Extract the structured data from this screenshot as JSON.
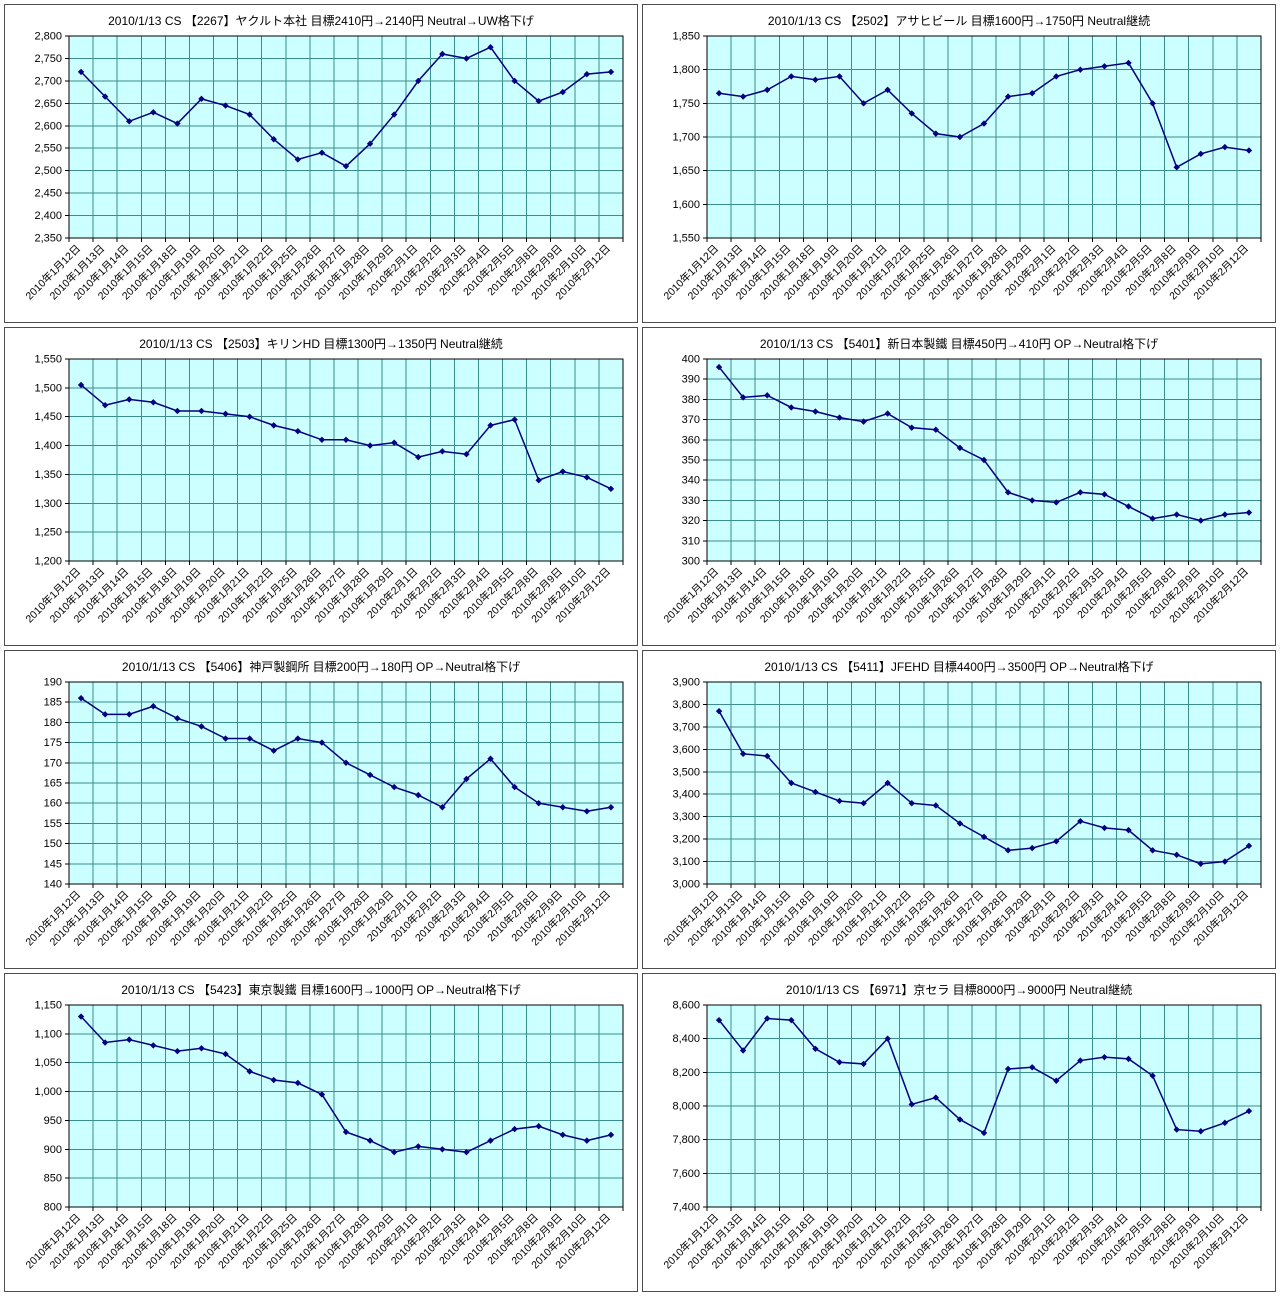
{
  "categories": [
    "2010年1月12日",
    "2010年1月13日",
    "2010年1月14日",
    "2010年1月15日",
    "2010年1月18日",
    "2010年1月19日",
    "2010年1月20日",
    "2010年1月21日",
    "2010年1月22日",
    "2010年1月25日",
    "2010年1月26日",
    "2010年1月27日",
    "2010年1月28日",
    "2010年1月29日",
    "2010年2月1日",
    "2010年2月2日",
    "2010年2月3日",
    "2010年2月4日",
    "2010年2月5日",
    "2010年2月8日",
    "2010年2月9日",
    "2010年2月10日",
    "2010年2月12日"
  ],
  "colors": {
    "page_bg": "#ffffff",
    "plot_bg": "#ccffff",
    "grid": "#3a8e8e",
    "series": "#000080",
    "axis": "#000000",
    "panel_border": "#4d4d4d"
  },
  "chart_data": [
    {
      "type": "line",
      "title": "2010/1/13 CS 【2267】ヤクルト本社 目標2410円→2140円 Neutral→UW格下げ",
      "values": [
        2720,
        2665,
        2610,
        2630,
        2605,
        2660,
        2645,
        2625,
        2570,
        2525,
        2540,
        2510,
        2560,
        2625,
        2700,
        2760,
        2750,
        2775,
        2700,
        2655,
        2675,
        2715,
        2720
      ],
      "ylim": [
        2350,
        2800
      ],
      "ytick_step": 50,
      "xlabel": "",
      "ylabel": "",
      "grid": true,
      "legend": false,
      "marker": "diamond"
    },
    {
      "type": "line",
      "title": "2010/1/13 CS 【2502】アサヒビール 目標1600円→1750円 Neutral継続",
      "values": [
        1765,
        1760,
        1770,
        1790,
        1785,
        1790,
        1750,
        1770,
        1735,
        1705,
        1700,
        1720,
        1760,
        1765,
        1790,
        1800,
        1805,
        1810,
        1750,
        1655,
        1675,
        1685,
        1680
      ],
      "ylim": [
        1550,
        1850
      ],
      "ytick_step": 50,
      "xlabel": "",
      "ylabel": "",
      "grid": true,
      "legend": false,
      "marker": "diamond"
    },
    {
      "type": "line",
      "title": "2010/1/13 CS 【2503】キリンHD 目標1300円→1350円 Neutral継続",
      "values": [
        1505,
        1470,
        1480,
        1475,
        1460,
        1460,
        1455,
        1450,
        1435,
        1425,
        1410,
        1410,
        1400,
        1405,
        1380,
        1390,
        1385,
        1435,
        1445,
        1340,
        1355,
        1345,
        1325
      ],
      "ylim": [
        1200,
        1550
      ],
      "ytick_step": 50,
      "xlabel": "",
      "ylabel": "",
      "grid": true,
      "legend": false,
      "marker": "diamond"
    },
    {
      "type": "line",
      "title": "2010/1/13 CS 【5401】新日本製鐵 目標450円→410円 OP→Neutral格下げ",
      "values": [
        396,
        381,
        382,
        376,
        374,
        371,
        369,
        373,
        366,
        365,
        356,
        350,
        334,
        330,
        329,
        334,
        333,
        327,
        321,
        323,
        320,
        323,
        324
      ],
      "ylim": [
        300,
        400
      ],
      "ytick_step": 10,
      "xlabel": "",
      "ylabel": "",
      "grid": true,
      "legend": false,
      "marker": "diamond"
    },
    {
      "type": "line",
      "title": "2010/1/13 CS 【5406】神戸製鋼所 目標200円→180円 OP→Neutral格下げ",
      "values": [
        186,
        182,
        182,
        184,
        181,
        179,
        176,
        176,
        173,
        176,
        175,
        170,
        167,
        164,
        162,
        159,
        166,
        171,
        164,
        160,
        159,
        158,
        159
      ],
      "ylim": [
        140,
        190
      ],
      "ytick_step": 5,
      "xlabel": "",
      "ylabel": "",
      "grid": true,
      "legend": false,
      "marker": "diamond"
    },
    {
      "type": "line",
      "title": "2010/1/13 CS 【5411】JFEHD 目標4400円→3500円 OP→Neutral格下げ",
      "values": [
        3770,
        3580,
        3570,
        3450,
        3410,
        3370,
        3360,
        3450,
        3360,
        3350,
        3270,
        3210,
        3150,
        3160,
        3190,
        3280,
        3250,
        3240,
        3150,
        3130,
        3090,
        3100,
        3170
      ],
      "ylim": [
        3000,
        3900
      ],
      "ytick_step": 100,
      "xlabel": "",
      "ylabel": "",
      "grid": true,
      "legend": false,
      "marker": "diamond"
    },
    {
      "type": "line",
      "title": "2010/1/13 CS 【5423】東京製鐵 目標1600円→1000円 OP→Neutral格下げ",
      "values": [
        1130,
        1085,
        1090,
        1080,
        1070,
        1075,
        1065,
        1035,
        1020,
        1015,
        995,
        930,
        915,
        895,
        905,
        900,
        895,
        915,
        935,
        940,
        925,
        915,
        925
      ],
      "ylim": [
        800,
        1150
      ],
      "ytick_step": 50,
      "xlabel": "",
      "ylabel": "",
      "grid": true,
      "legend": false,
      "marker": "diamond"
    },
    {
      "type": "line",
      "title": "2010/1/13 CS 【6971】京セラ 目標8000円→9000円 Neutral継続",
      "values": [
        8510,
        8330,
        8520,
        8510,
        8340,
        8260,
        8250,
        8400,
        8010,
        8050,
        7920,
        7840,
        8220,
        8230,
        8150,
        8270,
        8290,
        8280,
        8180,
        7860,
        7850,
        7900,
        7970
      ],
      "ylim": [
        7400,
        8600
      ],
      "ytick_step": 200,
      "xlabel": "",
      "ylabel": "",
      "grid": true,
      "legend": false,
      "marker": "diamond"
    }
  ]
}
